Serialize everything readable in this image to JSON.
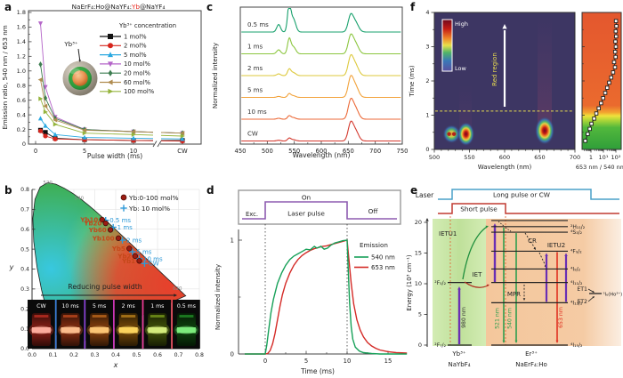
{
  "chart_data": {
    "a": {
      "panel_label": "a",
      "type": "line",
      "title_parts": [
        "NaErF₄:Ho@NaYF₄:",
        "Yb",
        "@NaYF₄"
      ],
      "title_accent_color": "#e8281e",
      "ylabel": "Emission ratio, 540 nm / 653 nm",
      "xlabel": "Pulse width (ms)",
      "ylim": [
        0,
        1.8
      ],
      "ytick_step": 0.2,
      "xticks": [
        "0",
        "5",
        "10"
      ],
      "xtick_cw": "CW",
      "inset_label": "Yb³⁺",
      "legend_title": "Yb³⁺ concentration",
      "x_pulse_width_ms": [
        0.5,
        1,
        2,
        5,
        10,
        "CW"
      ],
      "series": [
        {
          "label": "1 mol%",
          "marker": "square",
          "color": "#111111",
          "values": [
            0.19,
            0.16,
            0.08,
            0.06,
            0.05,
            0.05
          ]
        },
        {
          "label": "2 mol%",
          "marker": "circle",
          "color": "#d6251d",
          "values": [
            0.18,
            0.11,
            0.07,
            0.06,
            0.05,
            0.04
          ]
        },
        {
          "label": "5 mol%",
          "marker": "triangle-up",
          "color": "#29a8e0",
          "values": [
            0.35,
            0.25,
            0.13,
            0.09,
            0.08,
            0.07
          ]
        },
        {
          "label": "10 mol%",
          "marker": "triangle-down",
          "color": "#b464c8",
          "values": [
            1.65,
            0.78,
            0.37,
            0.2,
            0.17,
            0.15
          ]
        },
        {
          "label": "20 mol%",
          "marker": "diamond",
          "color": "#3c7d50",
          "values": [
            1.09,
            0.63,
            0.35,
            0.2,
            0.17,
            0.15
          ]
        },
        {
          "label": "60 mol%",
          "marker": "triangle-left",
          "color": "#b08c50",
          "values": [
            0.88,
            0.52,
            0.33,
            0.19,
            0.17,
            0.15
          ]
        },
        {
          "label": "100 mol%",
          "marker": "triangle-right",
          "color": "#95b43c",
          "values": [
            0.62,
            0.44,
            0.27,
            0.15,
            0.13,
            0.11
          ]
        }
      ]
    },
    "b": {
      "panel_label": "b",
      "type": "scatter",
      "xlabel": "x",
      "ylabel": "y",
      "xlim": [
        0,
        0.8
      ],
      "ylim": [
        0,
        0.8
      ],
      "tick_step": 0.1,
      "legend": [
        {
          "label": "Yb:0-100 mol%",
          "marker": "circle",
          "color": "#9b1c12"
        },
        {
          "label": "Yb: 10 mol%",
          "marker": "plus",
          "color": "#2e9ad8"
        }
      ],
      "locus_labels": [
        {
          "text": "520",
          "x": 0.075,
          "y": 0.836
        },
        {
          "text": "540",
          "x": 0.225,
          "y": 0.757
        },
        {
          "text": "620",
          "x": 0.695,
          "y": 0.305
        }
      ],
      "yb_series": [
        {
          "label": "Yb10",
          "x": 0.335,
          "y": 0.648
        },
        {
          "label": "Yb20",
          "x": 0.352,
          "y": 0.63
        },
        {
          "label": "Yb60",
          "x": 0.375,
          "y": 0.597
        },
        {
          "label": "Yb100",
          "x": 0.413,
          "y": 0.555
        },
        {
          "label": "Yb5",
          "x": 0.465,
          "y": 0.503
        },
        {
          "label": "Yb2",
          "x": 0.493,
          "y": 0.465
        },
        {
          "label": "Yb1",
          "x": 0.513,
          "y": 0.441
        }
      ],
      "pulse_series": [
        {
          "label": "0.5 ms",
          "x": 0.352,
          "y": 0.645
        },
        {
          "label": "1 ms",
          "x": 0.388,
          "y": 0.61
        },
        {
          "label": "2 ms",
          "x": 0.432,
          "y": 0.545
        },
        {
          "label": "5 ms",
          "x": 0.48,
          "y": 0.487
        },
        {
          "label": "10 ms",
          "x": 0.513,
          "y": 0.452
        },
        {
          "label": "CW",
          "x": 0.538,
          "y": 0.428
        }
      ],
      "arrow_label": "Reducing pulse width",
      "photos": [
        {
          "label": "CW",
          "body": "#7a1c14",
          "band": "#ffb0a0",
          "glow": "#ff4030"
        },
        {
          "label": "10 ms",
          "body": "#7a2a10",
          "band": "#ffc090",
          "glow": "#ff6428"
        },
        {
          "label": "5 ms",
          "body": "#7a3a0c",
          "band": "#ffc878",
          "glow": "#ff9028"
        },
        {
          "label": "2 ms",
          "body": "#6a4208",
          "band": "#ffd860",
          "glow": "#ffb428"
        },
        {
          "label": "1 ms",
          "body": "#3a4a08",
          "band": "#d8f080",
          "glow": "#a8d828"
        },
        {
          "label": "0.5 ms",
          "body": "#0c3c0c",
          "band": "#80f080",
          "glow": "#30c838"
        }
      ]
    },
    "c": {
      "panel_label": "c",
      "type": "line",
      "xlabel": "Wavelength (nm)",
      "ylabel": "Normalized intensity",
      "xticks": [
        450,
        500,
        550,
        600,
        650,
        700,
        750
      ],
      "peak_positions_nm": {
        "green": [
          521,
          540.5,
          548
        ],
        "red": [
          654,
          662.5
        ]
      },
      "traces": [
        {
          "label": "0.5 ms",
          "color": "#17a06c",
          "green_peak": 1.0,
          "red_peak": 0.53
        },
        {
          "label": "1 ms",
          "color": "#8cc63f",
          "green_peak": 0.53,
          "red_peak": 0.57
        },
        {
          "label": "2 ms",
          "color": "#ddc93d",
          "green_peak": 0.23,
          "red_peak": 0.6
        },
        {
          "label": "5 ms",
          "color": "#f2a23a",
          "green_peak": 0.13,
          "red_peak": 0.63
        },
        {
          "label": "10 ms",
          "color": "#ec6a38",
          "green_peak": 0.12,
          "red_peak": 0.6
        },
        {
          "label": "CW",
          "color": "#d43a2f",
          "green_peak": 0.1,
          "red_peak": 0.57
        }
      ]
    },
    "d": {
      "panel_label": "d",
      "type": "line",
      "pulse_labels": {
        "exc": "Exc.",
        "on": "On",
        "laser": "Laser pulse",
        "off": "Off"
      },
      "pulse_color": "#8d5cb0",
      "xlabel": "Time (ms)",
      "ylabel": "Normalized intensity",
      "xticks": [
        0,
        5,
        10,
        15
      ],
      "yticks": [
        0,
        1
      ],
      "legend_title": "Emission",
      "series": [
        {
          "label": "540 nm",
          "color": "#16a058",
          "points": [
            [
              -2.5,
              0
            ],
            [
              0,
              0
            ],
            [
              0.2,
              0.08
            ],
            [
              0.4,
              0.2
            ],
            [
              0.7,
              0.36
            ],
            [
              1,
              0.48
            ],
            [
              1.5,
              0.62
            ],
            [
              2,
              0.71
            ],
            [
              2.5,
              0.78
            ],
            [
              3,
              0.83
            ],
            [
              3.5,
              0.86
            ],
            [
              4,
              0.88
            ],
            [
              4.5,
              0.9
            ],
            [
              5,
              0.92
            ],
            [
              5.5,
              0.915
            ],
            [
              6,
              0.945
            ],
            [
              6.3,
              0.93
            ],
            [
              6.8,
              0.945
            ],
            [
              7.2,
              0.92
            ],
            [
              7.6,
              0.93
            ],
            [
              8,
              0.955
            ],
            [
              8.5,
              0.975
            ],
            [
              9,
              0.985
            ],
            [
              9.5,
              0.995
            ],
            [
              10,
              1
            ],
            [
              10.15,
              0.72
            ],
            [
              10.3,
              0.45
            ],
            [
              10.5,
              0.24
            ],
            [
              10.7,
              0.13
            ],
            [
              11,
              0.06
            ],
            [
              11.5,
              0.025
            ],
            [
              12,
              0.012
            ],
            [
              13,
              0.005
            ],
            [
              14,
              0
            ],
            [
              17.3,
              0
            ]
          ]
        },
        {
          "label": "653 nm",
          "color": "#d42a26",
          "points": [
            [
              -2.5,
              0
            ],
            [
              0,
              0
            ],
            [
              0.3,
              0.005
            ],
            [
              0.6,
              0.03
            ],
            [
              0.9,
              0.09
            ],
            [
              1.2,
              0.18
            ],
            [
              1.5,
              0.3
            ],
            [
              1.8,
              0.42
            ],
            [
              2.1,
              0.52
            ],
            [
              2.5,
              0.62
            ],
            [
              3,
              0.71
            ],
            [
              3.5,
              0.78
            ],
            [
              4,
              0.83
            ],
            [
              4.5,
              0.865
            ],
            [
              5,
              0.89
            ],
            [
              5.5,
              0.91
            ],
            [
              6,
              0.925
            ],
            [
              6.5,
              0.935
            ],
            [
              7,
              0.945
            ],
            [
              7.5,
              0.95
            ],
            [
              8,
              0.96
            ],
            [
              8.5,
              0.97
            ],
            [
              9,
              0.98
            ],
            [
              9.5,
              0.99
            ],
            [
              10,
              1
            ],
            [
              10.2,
              0.85
            ],
            [
              10.5,
              0.62
            ],
            [
              10.8,
              0.44
            ],
            [
              11.2,
              0.3
            ],
            [
              11.6,
              0.21
            ],
            [
              12,
              0.15
            ],
            [
              12.5,
              0.1
            ],
            [
              13,
              0.07
            ],
            [
              13.5,
              0.05
            ],
            [
              14,
              0.035
            ],
            [
              15,
              0.02
            ],
            [
              16,
              0.012
            ],
            [
              17.3,
              0.008
            ]
          ]
        }
      ]
    },
    "e": {
      "panel_label": "e",
      "type": "diagram",
      "laser_label": "Laser",
      "long_pulse_label": "Long pulse or CW",
      "short_pulse_label": "Short pulse",
      "ylabel": "Energy (10³ cm⁻¹)",
      "yticks": [
        0,
        5,
        10,
        15,
        20
      ],
      "yb": {
        "ion": "Yb³⁺",
        "host": "NaYbF₄",
        "levels": [
          {
            "label": "²F₇/₂",
            "E": 0
          },
          {
            "label": "²F₅/₂",
            "E": 10.2
          }
        ]
      },
      "er": {
        "ion": "Er³⁺",
        "host": "NaErF₄:Ho",
        "levels": [
          {
            "label": "",
            "E": 20.3
          },
          {
            "label": "²H₁₁/₂",
            "E": 19.3
          },
          {
            "label": "⁴S₃/₂",
            "E": 18.4
          },
          {
            "label": "⁴F₉/₂",
            "E": 15.3
          },
          {
            "label": "⁴I₉/₂",
            "E": 12.4
          },
          {
            "label": "⁴I₁₁/₂",
            "E": 10.2
          },
          {
            "label": "⁴I₁₃/₂",
            "E": 6.9
          },
          {
            "label": "⁴I₁₅/₂",
            "E": 0
          }
        ]
      },
      "ho_level": {
        "label": "⁵I₆(Ho³⁺)",
        "E": 8.4
      },
      "processes": {
        "ietu1": "IETU1",
        "iet": "IET",
        "cr": "CR",
        "mpr": "MPR",
        "ietu2": "IETU2",
        "et1": "ET1",
        "et2": "ET2"
      },
      "photons": {
        "p980": "980 nm",
        "p521": "521 nm",
        "p540": "540 nm",
        "p653": "653 nm"
      },
      "colors": {
        "pump": "#6a2fb4",
        "green": "#2e9e4f",
        "red": "#e03020",
        "long_pulse": "#4aa0c8",
        "short_pulse": "#c03a30"
      }
    },
    "f": {
      "panel_label": "f",
      "type": "heatmap",
      "xlabel": "Wavelength (nm)",
      "ylabel": "Time (ms)",
      "xticks": [
        500,
        550,
        600,
        650,
        700
      ],
      "yticks": [
        0,
        1,
        2,
        3,
        4
      ],
      "colorbar": {
        "high": "High",
        "low": "Low"
      },
      "region_label": "Red region",
      "dashed_line_time_ms": 1.12,
      "emission_blobs": [
        {
          "wavelength_nm": 521,
          "time_ms": 0.45,
          "intensity": "medium"
        },
        {
          "wavelength_nm": 528,
          "time_ms": 0.45,
          "intensity": "medium"
        },
        {
          "wavelength_nm": 545,
          "time_ms": 0.45,
          "intensity": "high"
        },
        {
          "wavelength_nm": 657,
          "time_ms": 0.55,
          "intensity": "high"
        }
      ],
      "ratio_plot": {
        "xlabel": "653 nm / 540 nm",
        "xtick_labels": [
          "1",
          "10¹",
          "10²"
        ],
        "points_time_ratio": [
          [
            0.25,
            0.35
          ],
          [
            0.45,
            0.55
          ],
          [
            0.6,
            0.8
          ],
          [
            0.75,
            1.1
          ],
          [
            0.9,
            1.8
          ],
          [
            1.05,
            2.7
          ],
          [
            1.2,
            4.2
          ],
          [
            1.35,
            6.5
          ],
          [
            1.5,
            9.5
          ],
          [
            1.65,
            14
          ],
          [
            1.8,
            20
          ],
          [
            1.95,
            29
          ],
          [
            2.1,
            42
          ],
          [
            2.25,
            60
          ],
          [
            2.4,
            85
          ],
          [
            2.55,
            72
          ],
          [
            2.7,
            95
          ],
          [
            2.85,
            88
          ],
          [
            3.0,
            100
          ],
          [
            3.15,
            92
          ],
          [
            3.3,
            105
          ],
          [
            3.45,
            98
          ],
          [
            3.6,
            110
          ],
          [
            3.75,
            102
          ]
        ]
      }
    }
  }
}
